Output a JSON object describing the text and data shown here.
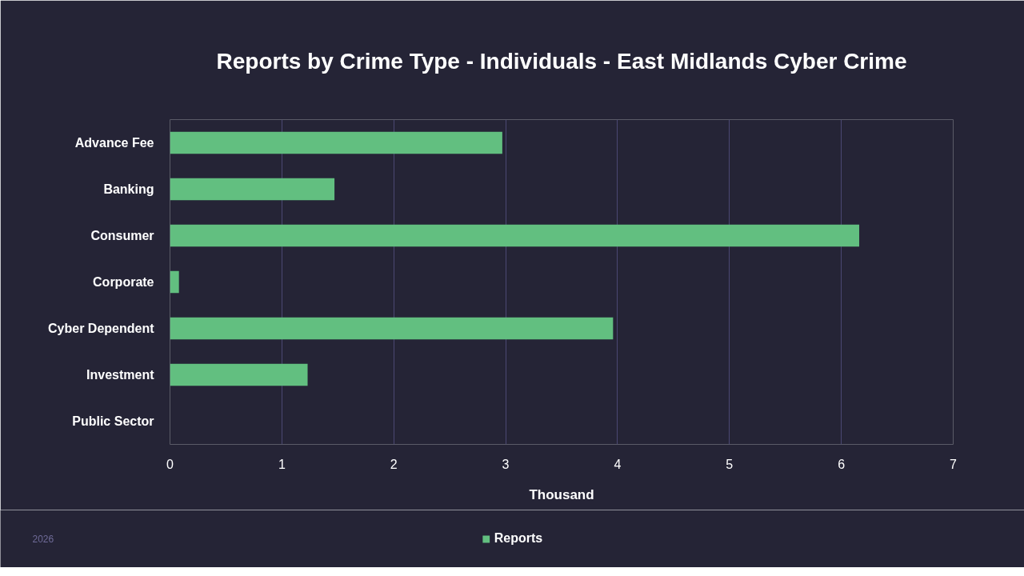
{
  "chart_data": {
    "type": "bar",
    "orientation": "horizontal",
    "title": "Reports by Crime Type - Individuals - East Midlands Cyber Crime",
    "xlabel": "Thousand",
    "categories": [
      "Advance Fee",
      "Banking",
      "Consumer",
      "Corporate",
      "Cyber Dependent",
      "Investment",
      "Public Sector"
    ],
    "series": [
      {
        "name": "Reports",
        "color": "#62bf80",
        "values": [
          2.97,
          1.47,
          6.16,
          0.08,
          3.96,
          1.23,
          0
        ]
      }
    ],
    "xlim": [
      0,
      7
    ],
    "xticks": [
      0,
      1,
      2,
      3,
      4,
      5,
      6,
      7
    ],
    "grid": "x",
    "legend": "bottom",
    "annotations": [
      "2026"
    ]
  }
}
